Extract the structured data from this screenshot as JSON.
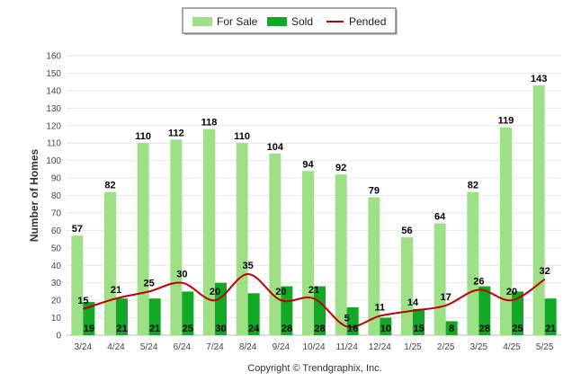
{
  "chart_data": {
    "type": "bar",
    "categories": [
      "3/24",
      "4/24",
      "5/24",
      "6/24",
      "7/24",
      "8/24",
      "9/24",
      "10/24",
      "11/24",
      "12/24",
      "1/25",
      "2/25",
      "3/25",
      "4/25",
      "5/25"
    ],
    "series": [
      {
        "name": "For Sale",
        "type": "bar",
        "color": "#9de085",
        "values": [
          57,
          82,
          110,
          112,
          118,
          110,
          104,
          94,
          92,
          79,
          56,
          64,
          82,
          119,
          143
        ]
      },
      {
        "name": "Sold",
        "type": "bar",
        "color": "#11a825",
        "values": [
          19,
          21,
          21,
          25,
          30,
          24,
          28,
          28,
          16,
          10,
          15,
          8,
          28,
          25,
          21
        ]
      },
      {
        "name": "Pended",
        "type": "line",
        "color": "#c00000",
        "values": [
          15,
          21,
          25,
          30,
          20,
          35,
          20,
          21,
          5,
          11,
          14,
          17,
          26,
          20,
          32
        ]
      }
    ],
    "ylabel": "Number of Homes",
    "xlabel": "",
    "ylim": [
      0,
      160
    ],
    "yticks": [
      0,
      10,
      20,
      30,
      40,
      50,
      60,
      70,
      80,
      90,
      100,
      110,
      120,
      130,
      140,
      150,
      160
    ],
    "grid": true,
    "legend_position": "top-center"
  },
  "footer": "Copyright © Trendgraphix, Inc."
}
